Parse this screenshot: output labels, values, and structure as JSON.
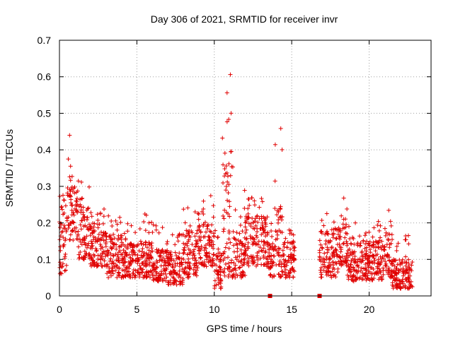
{
  "chart_data": {
    "type": "scatter",
    "title": "Day 306 of 2021, SRMTID for receiver invr",
    "xlabel": "GPS time / hours",
    "ylabel": "SRMTID / TECUs",
    "xlim": [
      0,
      24
    ],
    "ylim": [
      0,
      0.7
    ],
    "x_ticks": [
      0,
      5,
      10,
      15,
      20
    ],
    "x_tick_labels": [
      "0",
      "5",
      "10",
      "15",
      "20"
    ],
    "y_ticks": [
      0,
      0.1,
      0.2,
      0.3,
      0.4,
      0.5,
      0.6,
      0.7
    ],
    "y_tick_labels": [
      "0",
      "0.1",
      "0.2",
      "0.3",
      "0.4",
      "0.5",
      "0.6",
      "0.7"
    ],
    "grid": true,
    "marker": "+",
    "series": [
      {
        "name": "SRMTID",
        "color": "#e00000",
        "points_note": "approximately 2000 samples from 0 to 22.8 h; gap between 15.2 h and 16.8 h",
        "envelope": [
          {
            "x_range": [
              0.0,
              0.5
            ],
            "typical": [
              0.06,
              0.25
            ],
            "max": 0.31
          },
          {
            "x_range": [
              0.5,
              1.2
            ],
            "typical": [
              0.15,
              0.3
            ],
            "max": 0.48
          },
          {
            "x_range": [
              1.2,
              2.0
            ],
            "typical": [
              0.1,
              0.25
            ],
            "max": 0.32
          },
          {
            "x_range": [
              2.0,
              3.0
            ],
            "typical": [
              0.08,
              0.2
            ],
            "max": 0.25
          },
          {
            "x_range": [
              3.0,
              4.0
            ],
            "typical": [
              0.05,
              0.17
            ],
            "max": 0.22
          },
          {
            "x_range": [
              4.0,
              5.0
            ],
            "typical": [
              0.05,
              0.15
            ],
            "max": 0.2
          },
          {
            "x_range": [
              5.0,
              6.0
            ],
            "typical": [
              0.05,
              0.15
            ],
            "max": 0.24
          },
          {
            "x_range": [
              6.0,
              7.0
            ],
            "typical": [
              0.04,
              0.13
            ],
            "max": 0.2
          },
          {
            "x_range": [
              7.0,
              8.0
            ],
            "typical": [
              0.03,
              0.12
            ],
            "max": 0.18
          },
          {
            "x_range": [
              8.0,
              9.0
            ],
            "typical": [
              0.05,
              0.18
            ],
            "max": 0.25
          },
          {
            "x_range": [
              9.0,
              10.0
            ],
            "typical": [
              0.08,
              0.2
            ],
            "max": 0.28
          },
          {
            "x_range": [
              10.0,
              10.5
            ],
            "typical": [
              0.02,
              0.12
            ],
            "max": 0.2
          },
          {
            "x_range": [
              10.5,
              11.2
            ],
            "typical": [
              0.05,
              0.4
            ],
            "max": 0.61
          },
          {
            "x_range": [
              11.2,
              12.0
            ],
            "typical": [
              0.05,
              0.18
            ],
            "max": 0.3
          },
          {
            "x_range": [
              12.0,
              13.5
            ],
            "typical": [
              0.08,
              0.22
            ],
            "max": 0.27
          },
          {
            "x_range": [
              13.5,
              13.9
            ],
            "typical": [
              0.05,
              0.15
            ],
            "max": 0.2
          },
          {
            "x_range": [
              13.9,
              14.4
            ],
            "typical": [
              0.05,
              0.25
            ],
            "max": 0.46
          },
          {
            "x_range": [
              14.4,
              15.2
            ],
            "typical": [
              0.05,
              0.15
            ],
            "max": 0.2
          },
          {
            "x_range": [
              16.8,
              18.0
            ],
            "typical": [
              0.05,
              0.18
            ],
            "max": 0.23
          },
          {
            "x_range": [
              18.0,
              18.6
            ],
            "typical": [
              0.08,
              0.2
            ],
            "max": 0.28
          },
          {
            "x_range": [
              18.6,
              20.0
            ],
            "typical": [
              0.04,
              0.15
            ],
            "max": 0.2
          },
          {
            "x_range": [
              20.0,
              21.0
            ],
            "typical": [
              0.04,
              0.15
            ],
            "max": 0.21
          },
          {
            "x_range": [
              21.0,
              21.5
            ],
            "typical": [
              0.05,
              0.18
            ],
            "max": 0.24
          },
          {
            "x_range": [
              21.5,
              22.8
            ],
            "typical": [
              0.02,
              0.1
            ],
            "max": 0.17
          }
        ],
        "zero_points": [
          [
            13.6,
            0.0
          ],
          [
            16.8,
            0.0
          ]
        ]
      }
    ]
  }
}
